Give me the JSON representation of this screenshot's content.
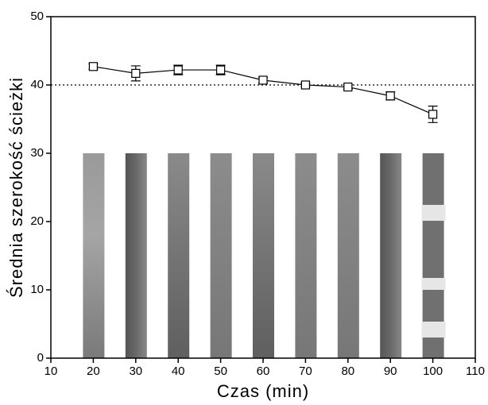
{
  "chart_data": {
    "type": "errorbar-line",
    "x": [
      20,
      30,
      40,
      50,
      60,
      70,
      80,
      90,
      100
    ],
    "values": [
      42.7,
      41.7,
      42.2,
      42.2,
      40.7,
      40.0,
      39.7,
      38.4,
      35.7
    ],
    "errors": [
      0.4,
      1.1,
      0.7,
      0.7,
      0.4,
      0.3,
      0.3,
      0.6,
      1.2
    ],
    "color": "#000000",
    "reference_line": 40,
    "xlabel": "Czas (min)",
    "ylabel": "Średnia szerokość ścieżki",
    "xlim": [
      10,
      110
    ],
    "xticks": [
      10,
      20,
      30,
      40,
      50,
      60,
      70,
      80,
      90,
      100,
      110
    ],
    "ylim": [
      0,
      50
    ],
    "yticks": [
      0,
      10,
      20,
      30,
      40,
      50
    ]
  }
}
